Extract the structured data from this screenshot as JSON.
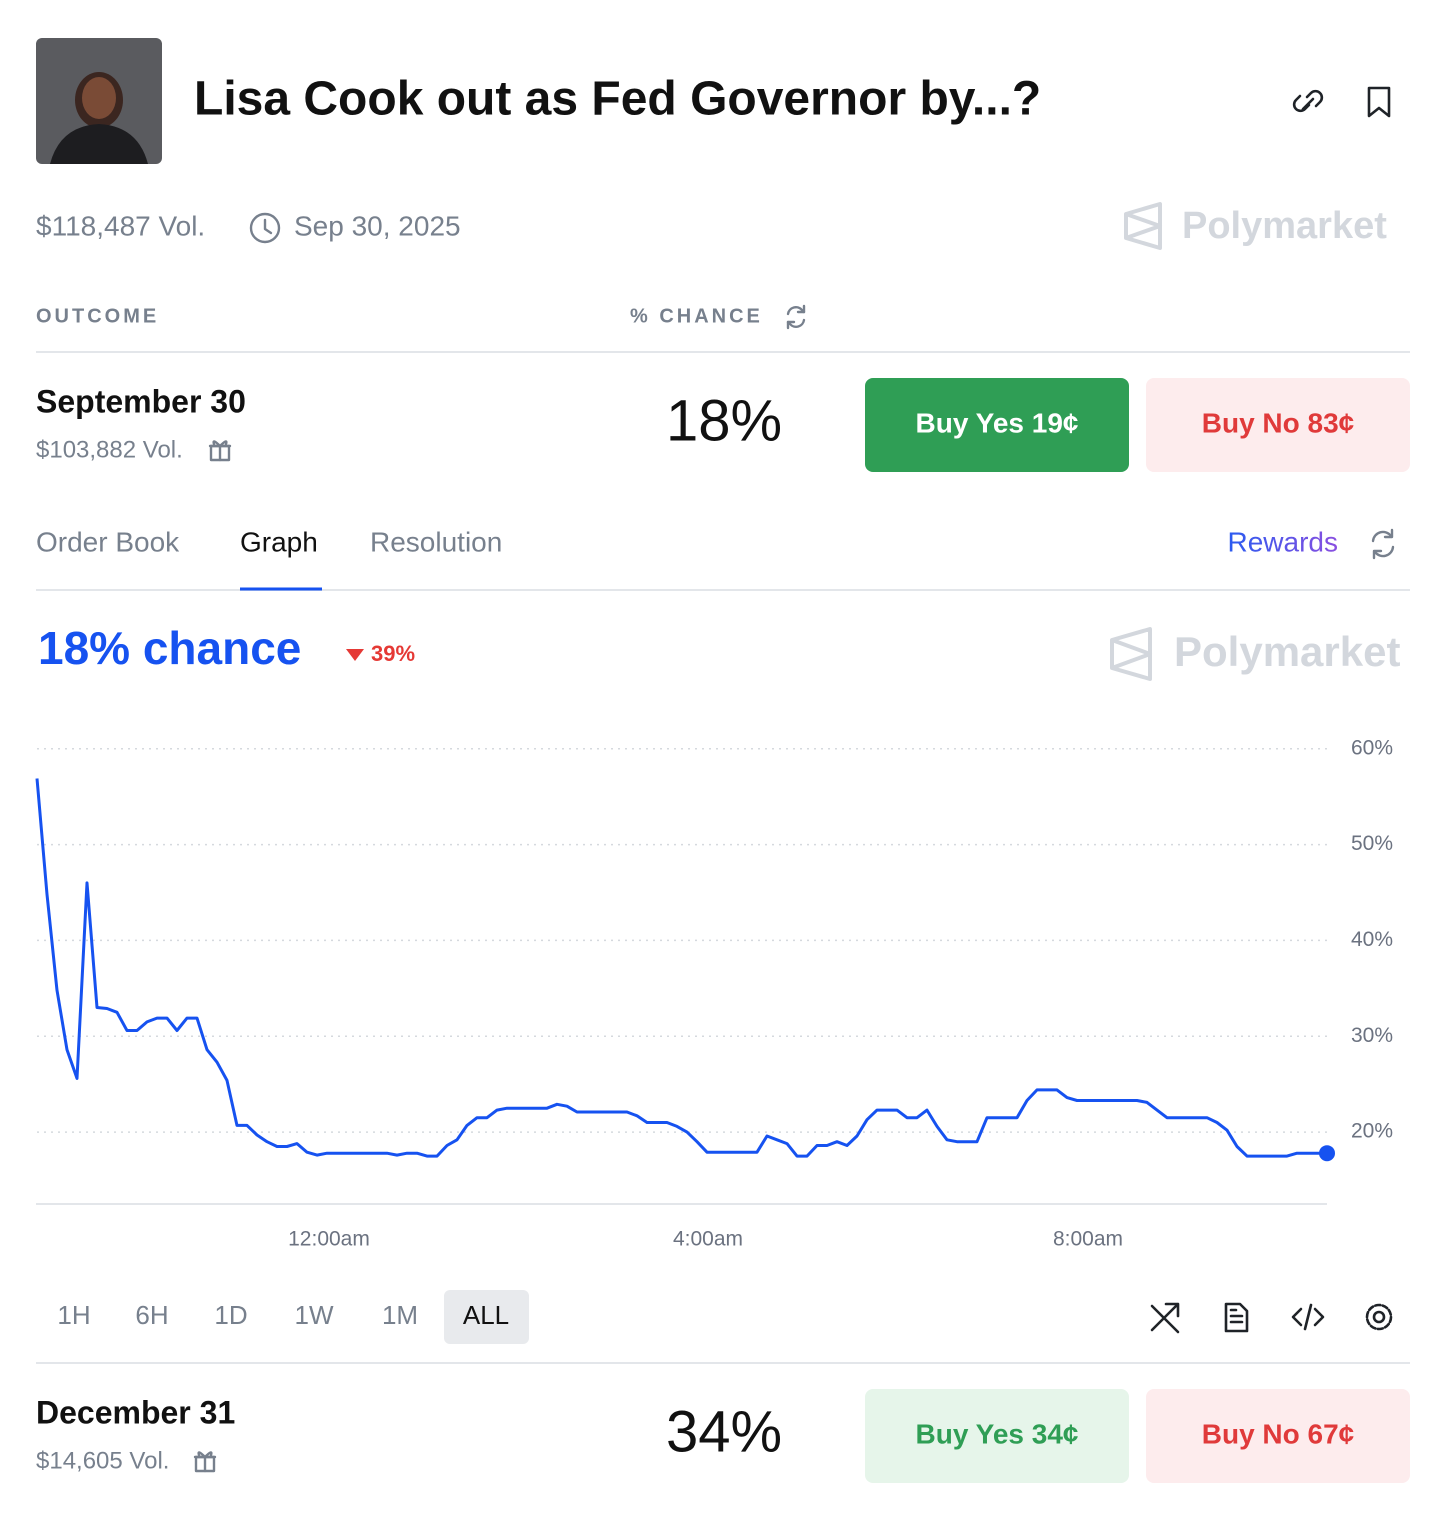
{
  "header": {
    "title": "Lisa Cook out as Fed Governor by...?",
    "volume": "$118,487 Vol.",
    "end_date": "Sep 30, 2025",
    "brand": "Polymarket"
  },
  "table_header": {
    "outcome": "OUTCOME",
    "chance": "% CHANCE"
  },
  "outcomes": [
    {
      "name": "September 30",
      "volume": "$103,882 Vol.",
      "chance": "18%",
      "buy_yes": "Buy Yes 19¢",
      "buy_no": "Buy No 83¢"
    },
    {
      "name": "December 31",
      "volume": "$14,605 Vol.",
      "chance": "34%",
      "buy_yes": "Buy Yes 34¢",
      "buy_no": "Buy No 67¢"
    }
  ],
  "tabs": {
    "items": [
      "Order Book",
      "Graph",
      "Resolution"
    ],
    "active": 1,
    "rewards": "Rewards"
  },
  "chart_panel": {
    "headline": "18% chance",
    "change": "39%",
    "brand": "Polymarket",
    "ranges": [
      "1H",
      "6H",
      "1D",
      "1W",
      "1M",
      "ALL"
    ],
    "active_range": 5
  },
  "chart_data": {
    "type": "line",
    "grid": true,
    "series": [
      {
        "name": "September 30",
        "color": "#1652f0",
        "values": [
          56.9,
          44.8,
          34.8,
          28.6,
          25.6,
          46,
          33,
          32.9,
          32.5,
          30.6,
          30.6,
          31.5,
          31.9,
          31.9,
          30.6,
          31.9,
          31.9,
          28.6,
          27.3,
          25.4,
          20.7,
          20.7,
          19.7,
          19,
          18.5,
          18.5,
          18.8,
          17.9,
          17.6,
          17.8,
          17.8,
          17.8,
          17.8,
          17.8,
          17.8,
          17.8,
          17.6,
          17.8,
          17.8,
          17.5,
          17.5,
          18.6,
          19.2,
          20.7,
          21.5,
          21.5,
          22.3,
          22.5,
          22.5,
          22.5,
          22.5,
          22.5,
          22.9,
          22.7,
          22.1,
          22.1,
          22.1,
          22.1,
          22.1,
          22.1,
          21.7,
          21,
          21,
          21,
          20.6,
          20,
          19,
          17.9,
          17.9,
          17.9,
          17.9,
          17.9,
          17.9,
          19.6,
          19.2,
          18.8,
          17.5,
          17.5,
          18.6,
          18.6,
          19,
          18.6,
          19.6,
          21.3,
          22.3,
          22.3,
          22.3,
          21.5,
          21.5,
          22.3,
          20.6,
          19.2,
          19,
          19,
          19,
          21.5,
          21.5,
          21.5,
          21.5,
          23.3,
          24.4,
          24.4,
          24.4,
          23.6,
          23.3,
          23.3,
          23.3,
          23.3,
          23.3,
          23.3,
          23.3,
          23.1,
          22.3,
          21.5,
          21.5,
          21.5,
          21.5,
          21.5,
          21,
          20.2,
          18.5,
          17.5,
          17.5,
          17.5,
          17.5,
          17.5,
          17.8,
          17.8,
          17.8,
          17.8
        ]
      }
    ],
    "xlim": [
      0,
      129
    ],
    "xticks": [
      {
        "value": 29.2,
        "label": "12:00am"
      },
      {
        "value": 67.1,
        "label": "4:00am"
      },
      {
        "value": 105.1,
        "label": "8:00am"
      }
    ],
    "ylim": [
      12.5,
      63
    ],
    "yticks": [
      {
        "value": 20,
        "label": "20%"
      },
      {
        "value": 30,
        "label": "30%"
      },
      {
        "value": 40,
        "label": "40%"
      },
      {
        "value": 50,
        "label": "50%"
      },
      {
        "value": 60,
        "label": "60%"
      }
    ]
  }
}
